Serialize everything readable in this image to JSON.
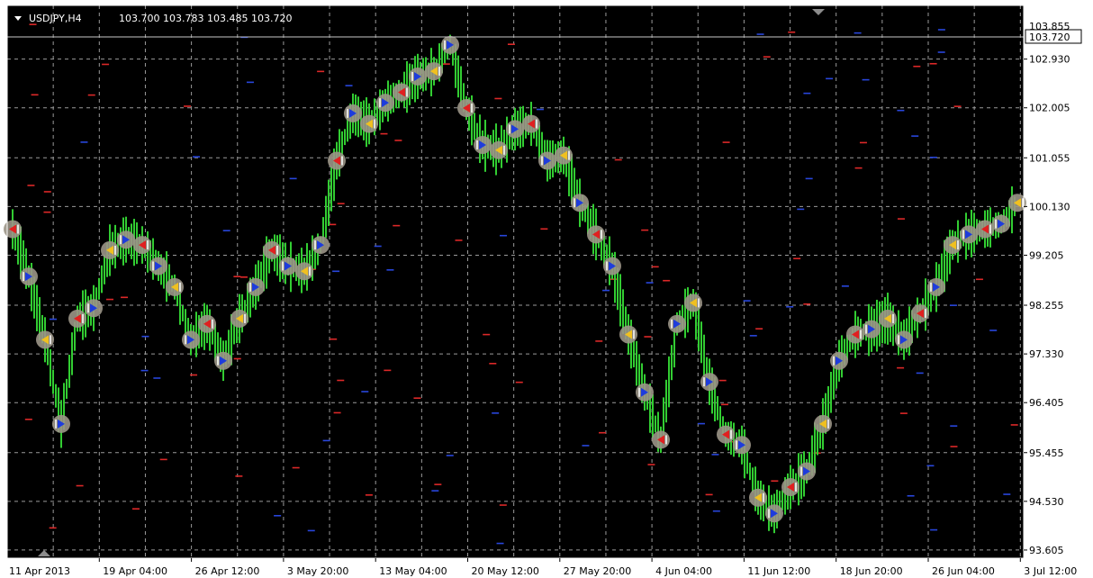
{
  "header": {
    "symbol": "USDJPY,H4",
    "ohlc": "103.700 103.783 103.485 103.720"
  },
  "colors": {
    "background": "#000000",
    "grid": "#9a9a9a",
    "candle": "#32cd32",
    "dash_red": "#dc2828",
    "dash_blue": "#2846dc",
    "marker_halo": "#9b9587",
    "arrow_red": "#e02020",
    "arrow_blue": "#1e3cdc",
    "arrow_yellow": "#f0c020"
  },
  "chart_data": {
    "type": "line",
    "ylim": [
      93.45,
      103.95
    ],
    "y_ticks": [
      "102.930",
      "102.005",
      "101.055",
      "100.130",
      "99.205",
      "98.255",
      "97.330",
      "96.405",
      "95.455",
      "94.530",
      "93.605"
    ],
    "top_tick_partial": "103.855",
    "current_price_label": "103.720",
    "x_ticks": [
      "11 Apr 2013",
      "19 Apr 04:00",
      "26 Apr 12:00",
      "3 May 20:00",
      "13 May 04:00",
      "20 May 12:00",
      "27 May 20:00",
      "4 Jun 04:00",
      "11 Jun 12:00",
      "18 Jun 20:00",
      "26 Jun 04:00",
      "3 Jul 12:00"
    ],
    "series": [
      {
        "x": [
          0,
          1,
          2,
          3,
          4,
          5,
          6,
          7,
          8,
          9,
          10,
          11,
          12,
          13,
          14,
          15,
          16,
          17,
          18,
          19,
          20,
          21,
          22,
          23,
          24,
          25,
          26,
          27,
          28,
          29,
          30,
          31,
          32,
          33,
          34,
          35,
          36,
          37,
          38,
          39,
          40,
          41,
          42,
          43,
          44,
          45,
          46,
          47,
          48,
          49,
          50,
          51,
          52,
          53,
          54,
          55,
          56,
          57,
          58,
          59,
          60,
          61,
          62
        ],
        "values": [
          99.7,
          98.8,
          97.6,
          96.0,
          98.0,
          98.2,
          99.3,
          99.5,
          99.4,
          99.0,
          98.6,
          97.6,
          97.9,
          97.2,
          98.0,
          98.6,
          99.3,
          99.0,
          98.9,
          99.4,
          101.0,
          101.9,
          101.7,
          102.1,
          102.3,
          102.6,
          102.7,
          103.2,
          102.0,
          101.3,
          101.2,
          101.6,
          101.7,
          101.0,
          101.1,
          100.2,
          99.6,
          99.0,
          97.7,
          96.6,
          95.7,
          97.9,
          98.3,
          96.8,
          95.8,
          95.6,
          94.6,
          94.3,
          94.8,
          95.1,
          96.0,
          97.2,
          97.7,
          97.8,
          98.0,
          97.6,
          98.1,
          98.6,
          99.4,
          99.6,
          99.7,
          99.8,
          100.2
        ]
      }
    ]
  }
}
